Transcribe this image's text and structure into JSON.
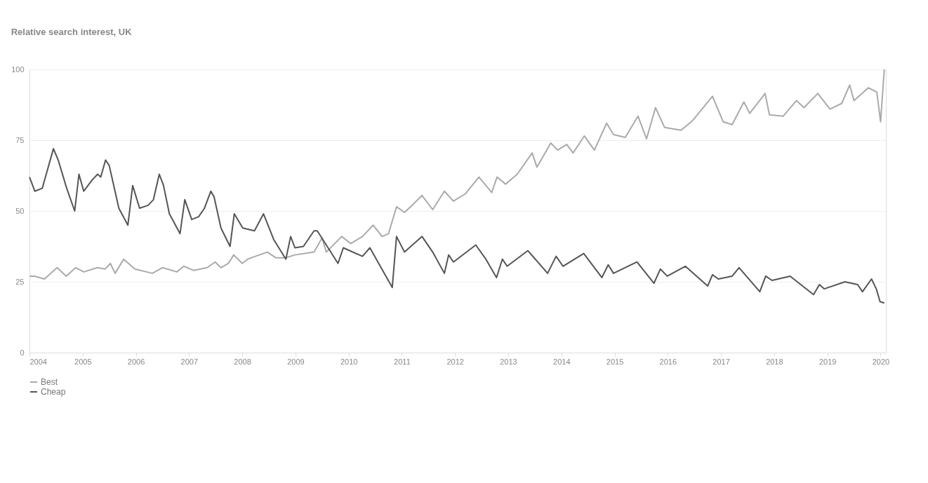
{
  "chart_data": {
    "type": "line",
    "title": "Relative search interest, UK",
    "xlim": [
      2004,
      2020.1
    ],
    "xticks": [
      2004,
      2005,
      2006,
      2007,
      2008,
      2009,
      2010,
      2011,
      2012,
      2013,
      2014,
      2015,
      2016,
      2017,
      2018,
      2019,
      2020
    ],
    "ylim": [
      0,
      100
    ],
    "yticks": [
      0,
      25,
      50,
      75,
      100
    ],
    "grid": "y",
    "legend": "bottom",
    "marker": "none",
    "line_style": "solid",
    "series": [
      {
        "name": "Best",
        "color": "#aaaaaa",
        "x": [
          2004.0,
          2004.1,
          2004.28,
          2004.52,
          2004.69,
          2004.87,
          2005.02,
          2005.28,
          2005.42,
          2005.52,
          2005.61,
          2005.77,
          2005.98,
          2006.31,
          2006.5,
          2006.77,
          2006.9,
          2007.09,
          2007.34,
          2007.49,
          2007.6,
          2007.74,
          2007.84,
          2008.0,
          2008.1,
          2008.47,
          2008.63,
          2008.82,
          2008.99,
          2009.35,
          2009.5,
          2009.58,
          2009.87,
          2010.04,
          2010.26,
          2010.46,
          2010.63,
          2010.75,
          2010.9,
          2011.05,
          2011.22,
          2011.38,
          2011.58,
          2011.8,
          2011.97,
          2012.19,
          2012.45,
          2012.69,
          2012.79,
          2012.95,
          2013.17,
          2013.45,
          2013.54,
          2013.8,
          2013.93,
          2014.1,
          2014.22,
          2014.43,
          2014.62,
          2014.85,
          2014.98,
          2015.2,
          2015.44,
          2015.6,
          2015.77,
          2015.94,
          2016.25,
          2016.47,
          2016.84,
          2017.04,
          2017.21,
          2017.43,
          2017.54,
          2017.83,
          2017.91,
          2018.17,
          2018.42,
          2018.56,
          2018.82,
          2019.05,
          2019.27,
          2019.42,
          2019.5,
          2019.77,
          2019.93,
          2020.0,
          2020.07
        ],
        "values": [
          27,
          27,
          26,
          30,
          27,
          30,
          28.5,
          30,
          29.5,
          31.5,
          28,
          33,
          29.5,
          28,
          30,
          28.5,
          30.5,
          29,
          30,
          32,
          30,
          31.5,
          34.5,
          31.5,
          33,
          35.5,
          33.5,
          33.5,
          34.5,
          35.5,
          40.5,
          35.5,
          41,
          38.5,
          41,
          45,
          41,
          42,
          51.5,
          49.5,
          52.5,
          55.5,
          50.5,
          57,
          53.5,
          56,
          62,
          56.5,
          62,
          59.5,
          63,
          70.5,
          65.5,
          74,
          71.5,
          73.5,
          70.5,
          76.5,
          71.5,
          81,
          77,
          76,
          83.5,
          75.5,
          86.5,
          79.5,
          78.5,
          82,
          90.5,
          81.5,
          80.5,
          88.5,
          84.5,
          91.5,
          84,
          83.5,
          89,
          86.5,
          91.5,
          86,
          88,
          94.5,
          89,
          93.5,
          92,
          81.5,
          100
        ]
      },
      {
        "name": "Cheap",
        "color": "#555555",
        "x": [
          2004.0,
          2004.1,
          2004.24,
          2004.45,
          2004.54,
          2004.7,
          2004.85,
          2004.93,
          2005.02,
          2005.18,
          2005.28,
          2005.34,
          2005.43,
          2005.5,
          2005.68,
          2005.85,
          2005.94,
          2006.07,
          2006.23,
          2006.33,
          2006.44,
          2006.52,
          2006.63,
          2006.83,
          2006.92,
          2007.05,
          2007.18,
          2007.29,
          2007.41,
          2007.47,
          2007.6,
          2007.77,
          2007.85,
          2008.01,
          2008.23,
          2008.4,
          2008.59,
          2008.82,
          2008.91,
          2008.99,
          2009.15,
          2009.35,
          2009.41,
          2009.8,
          2009.9,
          2010.26,
          2010.4,
          2010.55,
          2010.82,
          2010.9,
          2011.05,
          2011.38,
          2011.58,
          2011.8,
          2011.88,
          2011.97,
          2012.39,
          2012.58,
          2012.78,
          2012.89,
          2012.98,
          2013.37,
          2013.74,
          2013.9,
          2014.03,
          2014.42,
          2014.76,
          2014.88,
          2014.98,
          2015.42,
          2015.74,
          2015.86,
          2015.99,
          2016.33,
          2016.75,
          2016.84,
          2016.95,
          2017.21,
          2017.34,
          2017.73,
          2017.84,
          2017.96,
          2018.3,
          2018.74,
          2018.85,
          2018.94,
          2019.33,
          2019.57,
          2019.66,
          2019.83,
          2019.92,
          2019.99,
          2020.07
        ],
        "values": [
          62,
          57,
          58,
          72,
          68,
          58,
          50,
          63,
          57,
          61,
          63,
          62,
          68,
          66,
          51,
          45,
          59,
          51,
          52,
          54,
          63,
          59,
          49,
          42,
          54,
          47,
          48,
          51,
          57,
          55,
          44,
          37.5,
          49,
          44,
          43,
          49,
          40,
          33,
          41,
          37,
          37.5,
          43,
          43,
          31.5,
          37,
          34,
          37,
          32,
          23,
          41,
          35.5,
          41,
          35.5,
          28,
          34.5,
          32,
          38,
          33,
          26.5,
          33,
          30.5,
          36,
          28,
          34,
          30.5,
          35,
          26.5,
          31,
          28,
          32,
          24.5,
          29.5,
          27,
          30.5,
          23.5,
          27.5,
          26,
          27,
          30,
          21.5,
          27,
          25.5,
          27,
          20.5,
          24,
          22.5,
          25,
          24,
          21.5,
          26,
          22.5,
          18,
          17.5
        ]
      }
    ]
  }
}
